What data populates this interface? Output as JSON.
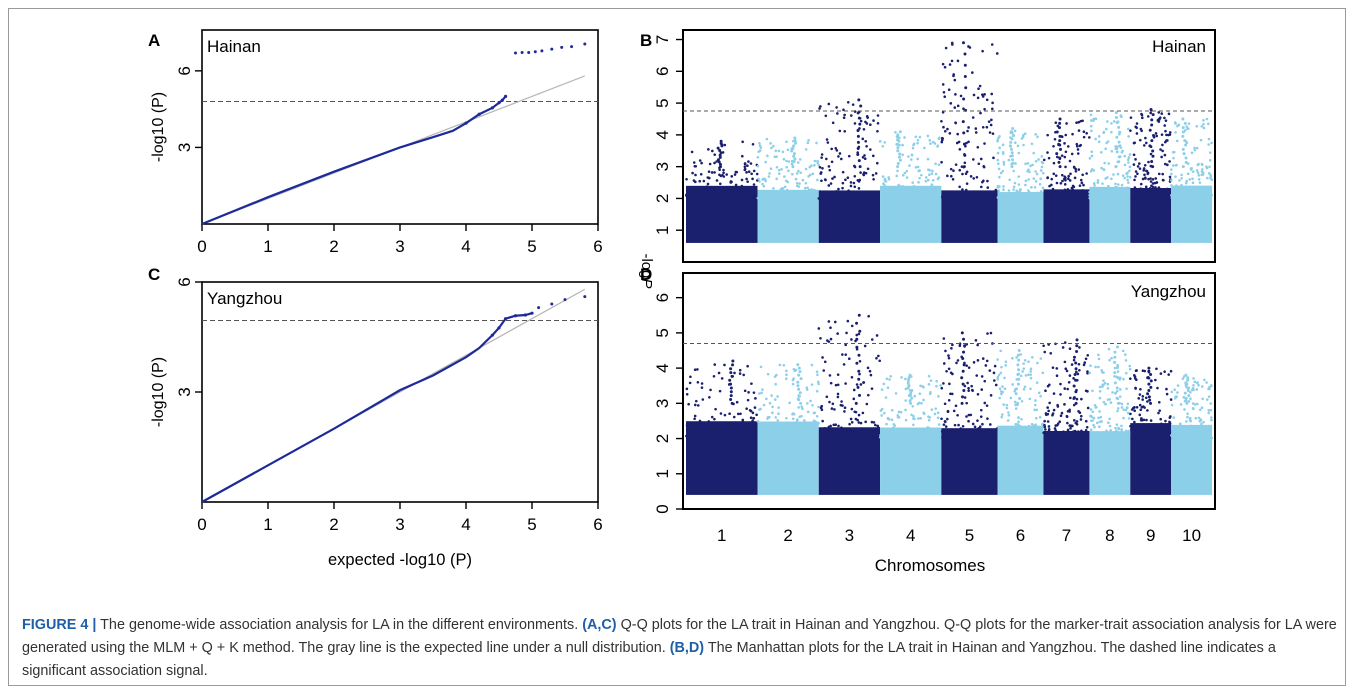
{
  "colors": {
    "dark_blue": "#1a1f6e",
    "light_blue": "#8ccfe8",
    "qq_line": "#1f2a9a",
    "expected_line": "#b8b8b8",
    "threshold": "#555555",
    "caption_accent": "#1f5fa8"
  },
  "chart_data": [
    {
      "panel": "A",
      "type": "scatter",
      "title": "Hainan",
      "xlabel": "",
      "ylabel": "-log10 (P)",
      "xlim": [
        0,
        6
      ],
      "ylim": [
        0,
        7.6
      ],
      "xticks": [
        "0",
        "1",
        "2",
        "3",
        "4",
        "5",
        "6"
      ],
      "yticks": [
        "3",
        "6"
      ],
      "threshold": 4.8,
      "expected_line": [
        [
          0,
          0
        ],
        [
          5.8,
          5.8
        ]
      ],
      "points": [
        [
          0,
          0
        ],
        [
          1,
          1.05
        ],
        [
          2,
          2.05
        ],
        [
          3,
          3.0
        ],
        [
          3.5,
          3.4
        ],
        [
          3.8,
          3.65
        ],
        [
          4.0,
          3.95
        ],
        [
          4.2,
          4.3
        ],
        [
          4.4,
          4.55
        ],
        [
          4.5,
          4.75
        ],
        [
          4.55,
          4.85
        ],
        [
          4.6,
          5.0
        ]
      ],
      "top_points": [
        [
          4.75,
          6.7
        ],
        [
          4.85,
          6.72
        ],
        [
          4.95,
          6.72
        ],
        [
          5.05,
          6.75
        ],
        [
          5.15,
          6.78
        ],
        [
          5.3,
          6.85
        ],
        [
          5.45,
          6.92
        ],
        [
          5.6,
          6.95
        ],
        [
          5.8,
          7.05
        ]
      ]
    },
    {
      "panel": "C",
      "type": "scatter",
      "title": "Yangzhou",
      "xlabel": "expected -log10 (P)",
      "ylabel": "-log10 (P)",
      "xlim": [
        0,
        6
      ],
      "ylim": [
        0,
        6
      ],
      "xticks": [
        "0",
        "1",
        "2",
        "3",
        "4",
        "5",
        "6"
      ],
      "yticks": [
        "3",
        "6"
      ],
      "threshold": 4.95,
      "expected_line": [
        [
          0,
          0
        ],
        [
          5.8,
          5.8
        ]
      ],
      "points": [
        [
          0,
          0
        ],
        [
          1,
          1.0
        ],
        [
          2,
          2.0
        ],
        [
          3,
          3.05
        ],
        [
          3.5,
          3.45
        ],
        [
          4.0,
          3.95
        ],
        [
          4.2,
          4.2
        ],
        [
          4.4,
          4.55
        ],
        [
          4.5,
          4.75
        ],
        [
          4.6,
          5.0
        ],
        [
          4.75,
          5.08
        ],
        [
          4.9,
          5.1
        ],
        [
          5.0,
          5.15
        ]
      ],
      "top_points": [
        [
          5.1,
          5.3
        ],
        [
          5.3,
          5.4
        ],
        [
          5.5,
          5.52
        ],
        [
          5.8,
          5.6
        ]
      ]
    },
    {
      "panel": "B",
      "type": "scatter",
      "title": "Hainan",
      "xlabel": "",
      "ylabel": "-log",
      "ylabel_italic": "P",
      "ylim": [
        0,
        7.3
      ],
      "yticks": [
        "1",
        "2",
        "3",
        "4",
        "5",
        "6",
        "7"
      ],
      "threshold": 4.75,
      "chromosomes": [
        "1",
        "2",
        "3",
        "4",
        "5",
        "6",
        "7",
        "8",
        "9",
        "10"
      ],
      "chromosome_peaks": [
        3.8,
        3.9,
        5.1,
        4.1,
        6.9,
        4.2,
        4.5,
        4.7,
        4.8,
        4.5
      ]
    },
    {
      "panel": "D",
      "type": "scatter",
      "title": "Yangzhou",
      "xlabel": "Chromosomes",
      "ylabel": "",
      "ylim": [
        0,
        6.7
      ],
      "yticks": [
        "0",
        "1",
        "2",
        "3",
        "4",
        "5",
        "6"
      ],
      "threshold": 4.7,
      "chromosomes": [
        "1",
        "2",
        "3",
        "4",
        "5",
        "6",
        "7",
        "8",
        "9",
        "10"
      ],
      "chromosome_peaks": [
        4.2,
        4.1,
        5.5,
        3.8,
        5.0,
        4.5,
        4.8,
        4.6,
        4.0,
        3.8
      ]
    }
  ],
  "caption": {
    "label": "FIGURE 4 |",
    "p1": " The genome-wide association analysis for LA in the different environments. ",
    "b1": "(A,C)",
    "p2": " Q-Q plots for the LA trait in Hainan and Yangzhou. Q-Q plots for the marker-trait association analysis for LA were generated using the MLM + Q + K method. The gray line is the expected line under a null distribution. ",
    "b2": "(B,D)",
    "p3": " The Manhattan plots for the LA trait in Hainan and Yangzhou. The dashed line indicates a significant association signal."
  }
}
